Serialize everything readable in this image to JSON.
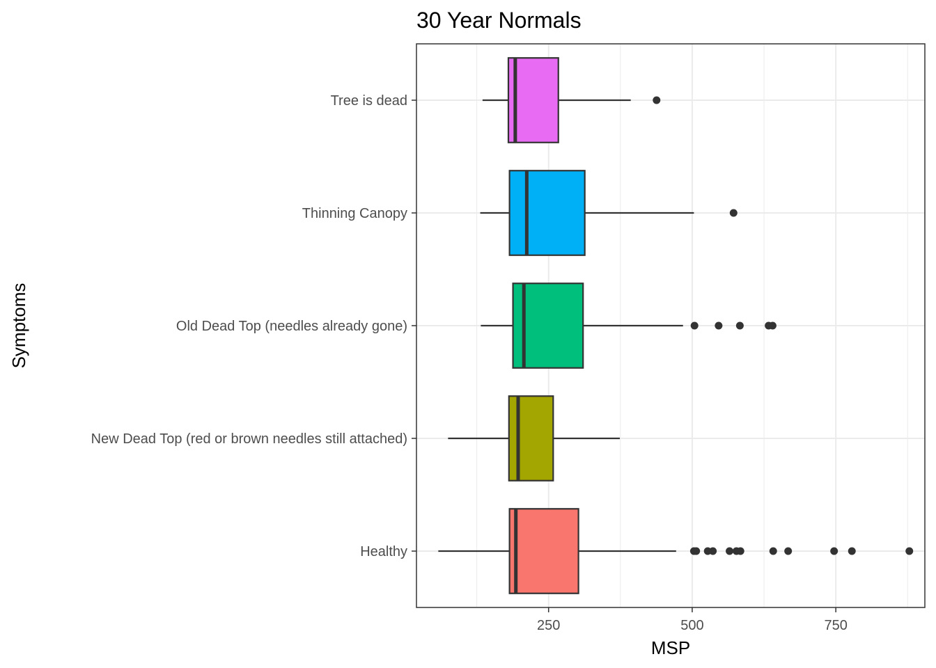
{
  "chart_data": {
    "type": "boxplot",
    "orientation": "horizontal",
    "title": "30 Year Normals",
    "xlabel": "MSP",
    "ylabel": "Symptoms",
    "xlim": [
      20,
      905
    ],
    "x_ticks": [
      250,
      500,
      750
    ],
    "x_minor_ticks": [
      125,
      375,
      625,
      875
    ],
    "grid": true,
    "legend": "none",
    "categories": [
      "Healthy",
      "New Dead Top (red or brown needles still attached)",
      "Old Dead Top (needles already gone)",
      "Thinning Canopy",
      "Tree is dead"
    ],
    "series": [
      {
        "category": "Healthy",
        "color": "#F8766D",
        "whisker_low": 58,
        "q1": 182,
        "median": 193,
        "q3": 302,
        "whisker_high": 472,
        "outliers": [
          503,
          507,
          527,
          536,
          565,
          577,
          584,
          641,
          667,
          747,
          778,
          878
        ]
      },
      {
        "category": "New Dead Top (red or brown needles still attached)",
        "color": "#A3A500",
        "whisker_low": 75,
        "q1": 181,
        "median": 197,
        "q3": 258,
        "whisker_high": 374,
        "outliers": []
      },
      {
        "category": "Old Dead Top (needles already gone)",
        "color": "#00BF7D",
        "whisker_low": 132,
        "q1": 188,
        "median": 207,
        "q3": 310,
        "whisker_high": 484,
        "outliers": [
          504,
          546,
          583,
          633,
          640
        ]
      },
      {
        "category": "Thinning Canopy",
        "color": "#00B0F6",
        "whisker_low": 131,
        "q1": 182,
        "median": 212,
        "q3": 313,
        "whisker_high": 503,
        "outliers": [
          572
        ]
      },
      {
        "category": "Tree is dead",
        "color": "#E76BF3",
        "whisker_low": 135,
        "q1": 180,
        "median": 192,
        "q3": 267,
        "whisker_high": 393,
        "outliers": [
          438
        ]
      }
    ]
  }
}
